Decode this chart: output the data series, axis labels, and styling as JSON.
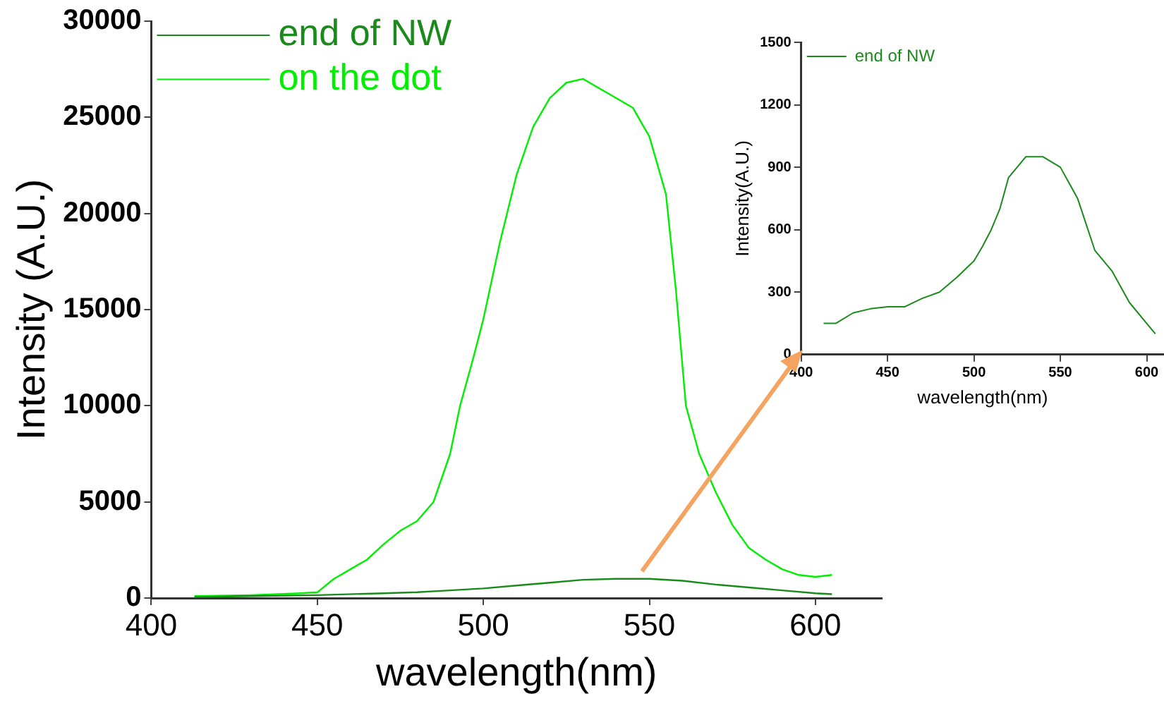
{
  "chart_data": [
    {
      "type": "line",
      "xlabel": "wavelength(nm)",
      "ylabel": "Intensity (A.U.)",
      "xlim": [
        400,
        620
      ],
      "xticks": [
        400,
        450,
        500,
        550,
        600
      ],
      "ylim": [
        0,
        30000
      ],
      "yticks": [
        0,
        5000,
        10000,
        15000,
        20000,
        25000,
        30000
      ],
      "grid": false,
      "legend": "top left",
      "series": [
        {
          "name": "end of NW",
          "color": "#1a8a1a",
          "x": [
            413,
            430,
            450,
            470,
            480,
            490,
            500,
            510,
            520,
            530,
            540,
            550,
            560,
            570,
            580,
            590,
            600,
            605
          ],
          "values": [
            50,
            100,
            150,
            250,
            300,
            400,
            500,
            650,
            800,
            950,
            1000,
            1000,
            900,
            700,
            550,
            400,
            250,
            200
          ]
        },
        {
          "name": "on the dot",
          "color": "#00ee00",
          "x": [
            413,
            430,
            445,
            450,
            455,
            460,
            465,
            470,
            475,
            480,
            485,
            490,
            493,
            497,
            500,
            505,
            510,
            515,
            520,
            525,
            530,
            535,
            540,
            545,
            550,
            555,
            558,
            561,
            565,
            570,
            575,
            580,
            585,
            590,
            595,
            600,
            605
          ],
          "values": [
            100,
            150,
            250,
            300,
            1000,
            1500,
            2000,
            2800,
            3500,
            4000,
            5000,
            7500,
            10000,
            12500,
            14500,
            18500,
            22000,
            24500,
            26000,
            26800,
            27000,
            26500,
            26000,
            25500,
            24000,
            21000,
            16000,
            10000,
            7500,
            5500,
            3800,
            2600,
            2000,
            1500,
            1200,
            1100,
            1200
          ]
        }
      ]
    },
    {
      "type": "line",
      "xlabel": "wavelength(nm)",
      "ylabel": "Intensity(A.U.)",
      "xlim": [
        400,
        610
      ],
      "xticks": [
        400,
        450,
        500,
        550,
        600
      ],
      "ylim": [
        0,
        1500
      ],
      "yticks": [
        0,
        300,
        600,
        900,
        1200,
        1500
      ],
      "grid": false,
      "legend": "top left",
      "series": [
        {
          "name": "end of NW",
          "color": "#1a8a1a",
          "x": [
            413,
            420,
            430,
            440,
            450,
            460,
            470,
            480,
            490,
            500,
            505,
            510,
            515,
            520,
            525,
            530,
            540,
            550,
            560,
            570,
            580,
            590,
            600,
            605
          ],
          "values": [
            150,
            150,
            200,
            220,
            230,
            230,
            270,
            300,
            370,
            450,
            520,
            600,
            700,
            850,
            900,
            950,
            950,
            900,
            750,
            500,
            400,
            250,
            150,
            100
          ]
        }
      ]
    }
  ]
}
